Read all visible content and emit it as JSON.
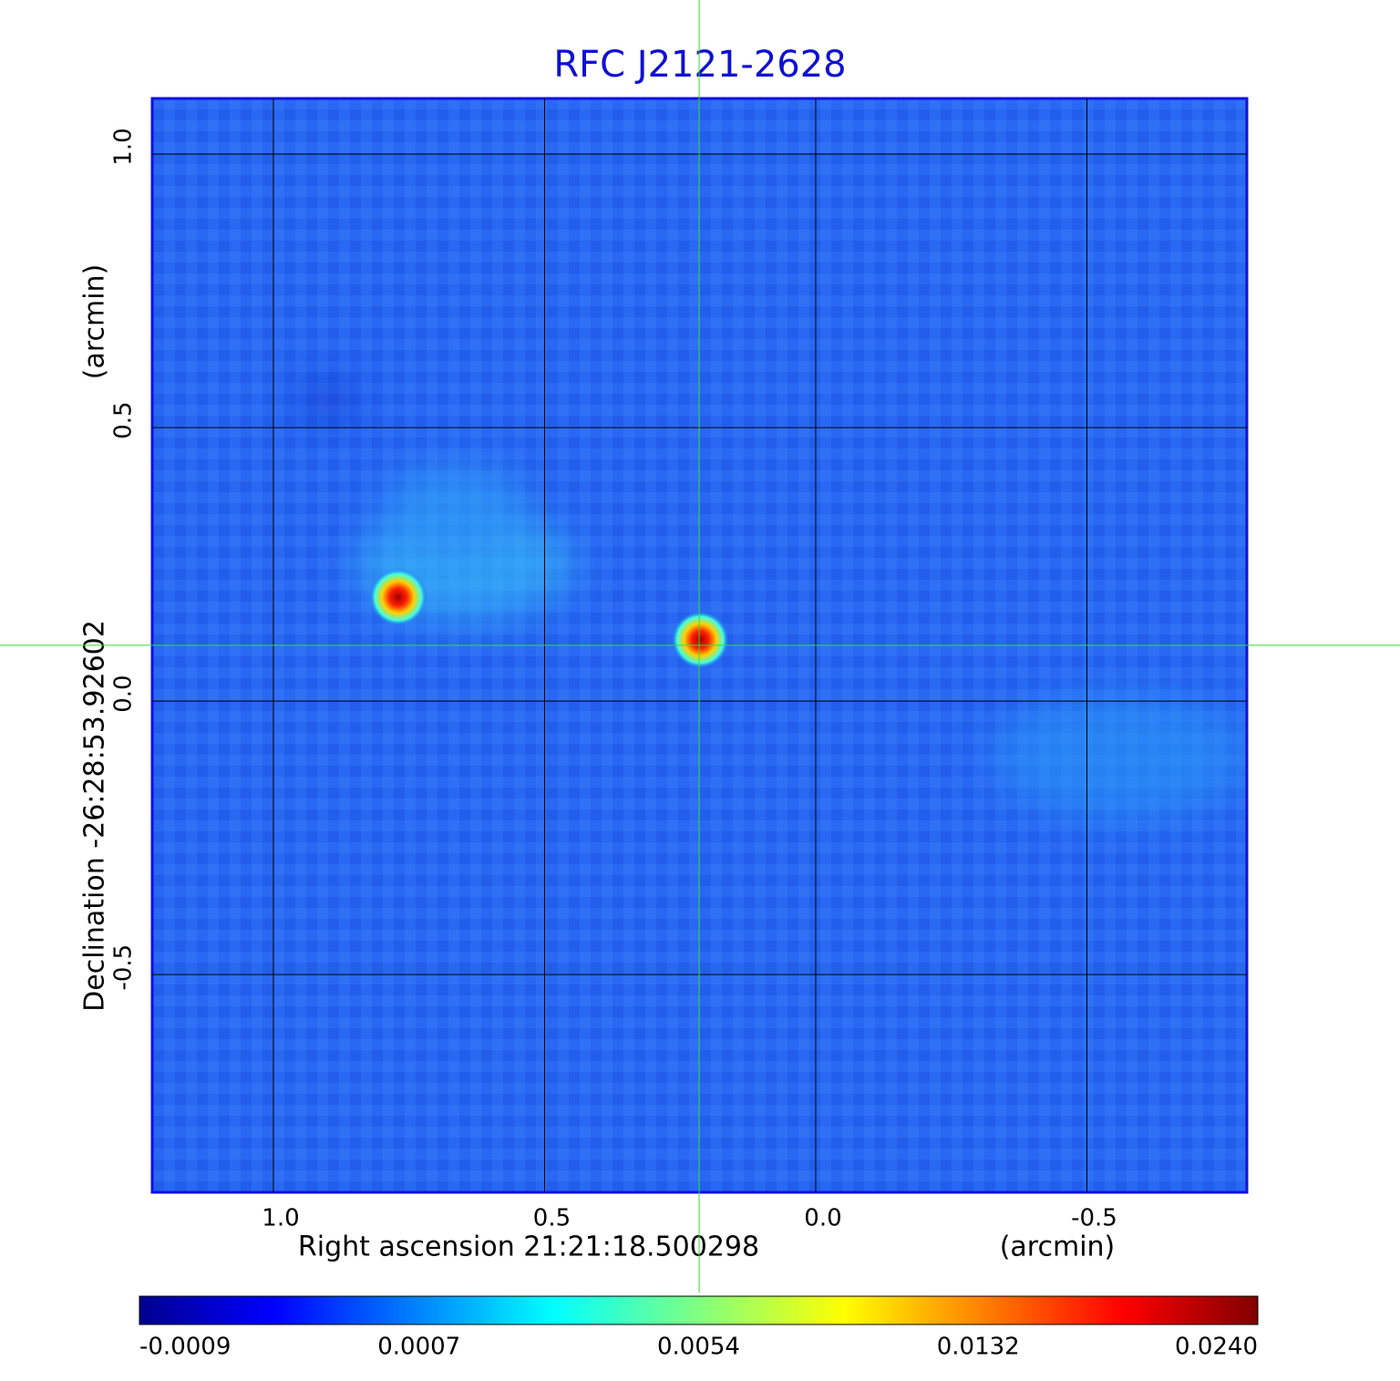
{
  "chart_data": {
    "type": "image",
    "title": "RFC J2121-2628",
    "x_label": "Right ascension  21:21:18.500298",
    "x_unit": "(arcmin)",
    "y_label": "Declination  -26:28:53.92602",
    "y_unit": "(arcmin)",
    "xlim": [
      1.2235,
      -0.795
    ],
    "ylim": [
      -0.898,
      1.1017
    ],
    "xticks": [
      {
        "value": 1,
        "label": "1.0"
      },
      0.5,
      {
        "value": 0,
        "label": "0.0"
      },
      -0.5
    ],
    "yticks": [
      -0.5,
      {
        "value": 0,
        "label": "0.0"
      },
      0.5,
      {
        "value": 1,
        "label": "1.0"
      }
    ],
    "grid": true,
    "crosshair": {
      "x": 0.215,
      "y": 0.102
    },
    "sources": {
      "x": [
        0.77,
        0.213
      ],
      "y": [
        0.19,
        0.112
      ]
    },
    "colorbar_labels": [
      "-0.0009",
      "0.0007",
      "0.0054",
      "0.0132",
      "0.0240"
    ]
  }
}
